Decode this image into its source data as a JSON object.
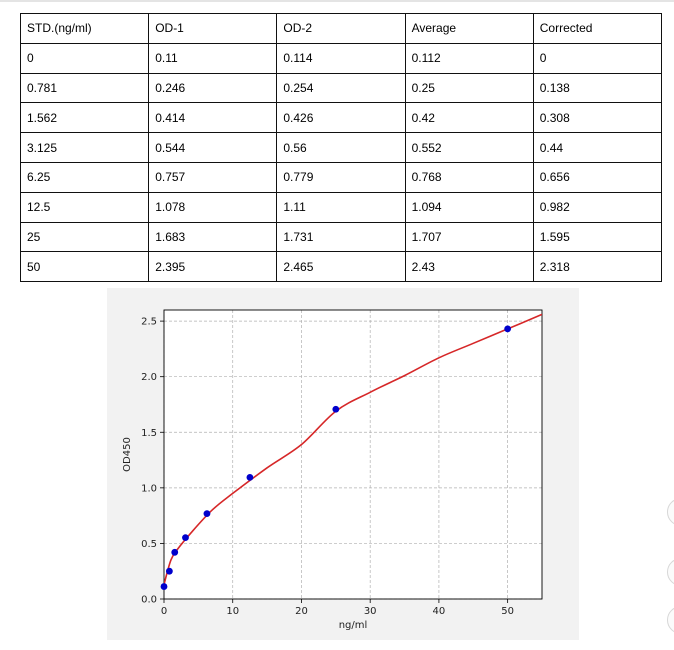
{
  "table": {
    "headers": [
      "STD.(ng/ml)",
      "OD-1",
      "OD-2",
      "Average",
      "Corrected"
    ],
    "rows": [
      [
        "0",
        "0.11",
        "0.114",
        "0.112",
        "0"
      ],
      [
        "0.781",
        "0.246",
        "0.254",
        "0.25",
        "0.138"
      ],
      [
        "1.562",
        "0.414",
        "0.426",
        "0.42",
        "0.308"
      ],
      [
        "3.125",
        "0.544",
        "0.56",
        "0.552",
        "0.44"
      ],
      [
        "6.25",
        "0.757",
        "0.779",
        "0.768",
        "0.656"
      ],
      [
        "12.5",
        "1.078",
        "1.11",
        "1.094",
        "0.982"
      ],
      [
        "25",
        "1.683",
        "1.731",
        "1.707",
        "1.595"
      ],
      [
        "50",
        "2.395",
        "2.465",
        "2.43",
        "2.318"
      ]
    ]
  },
  "chart_data": {
    "type": "scatter",
    "title": "",
    "xlabel": "ng/ml",
    "ylabel": "OD450",
    "xlim": [
      0,
      55
    ],
    "ylim": [
      0,
      2.6
    ],
    "xticks": [
      0,
      10,
      20,
      30,
      40,
      50
    ],
    "xtick_labels": [
      "0",
      "10",
      "20",
      "30",
      "40",
      "50"
    ],
    "yticks": [
      0,
      0.5,
      1,
      1.5,
      2,
      2.5
    ],
    "ytick_labels": [
      "0.0",
      "0.5",
      "1.0",
      "1.5",
      "2.0",
      "2.5"
    ],
    "grid": true,
    "points": {
      "x": [
        0,
        0.781,
        1.562,
        3.125,
        6.25,
        12.5,
        25,
        50
      ],
      "y": [
        0.112,
        0.25,
        0.42,
        0.552,
        0.768,
        1.094,
        1.707,
        2.43
      ],
      "color": "#0000cc"
    },
    "fit_curve": {
      "x": [
        0,
        1,
        2,
        4,
        7,
        10,
        15,
        20,
        25,
        30,
        35,
        40,
        45,
        50,
        55
      ],
      "y": [
        0.13,
        0.35,
        0.45,
        0.6,
        0.8,
        0.95,
        1.18,
        1.39,
        1.69,
        1.86,
        2.01,
        2.17,
        2.3,
        2.43,
        2.56
      ],
      "color": "#d62728"
    },
    "grid_color": "#b0b0b0",
    "plot_background": "#ffffff",
    "figure_background": "#f2f2f2"
  }
}
